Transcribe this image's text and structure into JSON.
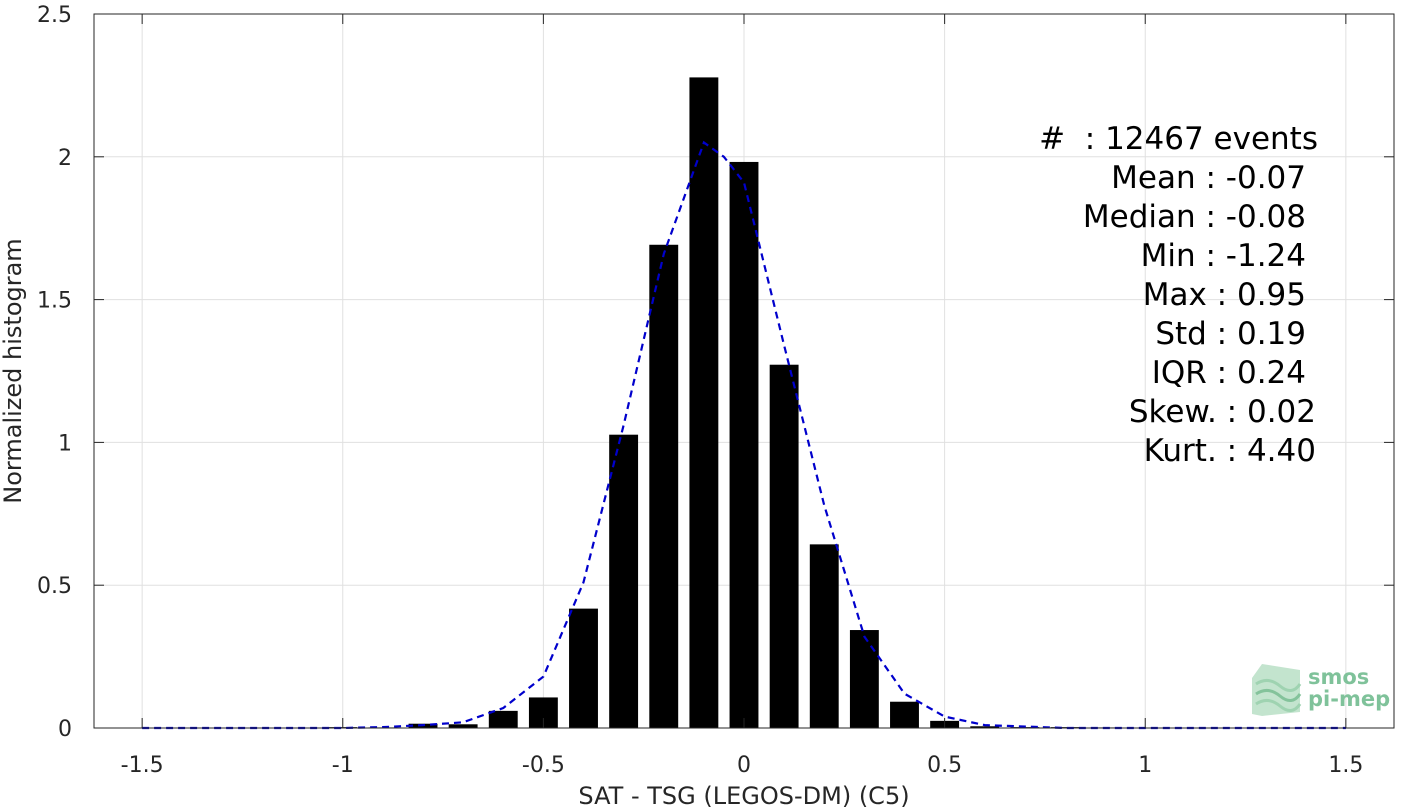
{
  "chart_data": {
    "type": "bar",
    "xlabel": "SAT - TSG (LEGOS-DM) (C5)",
    "ylabel": "Normalized histogram",
    "xlim": [
      -1.62,
      1.62
    ],
    "ylim": [
      0,
      2.5
    ],
    "xticks": [
      -1.5,
      -1,
      -0.5,
      0,
      0.5,
      1,
      1.5
    ],
    "xtick_labels": [
      "-1.5",
      "-1",
      "-0.5",
      "0",
      "0.5",
      "1",
      "1.5"
    ],
    "yticks": [
      0,
      0.5,
      1,
      1.5,
      2,
      2.5
    ],
    "ytick_labels": [
      "0",
      "0.5",
      "1",
      "1.5",
      "2",
      "2.5"
    ],
    "grid": true,
    "bar_color": "#000000",
    "bars": {
      "centers": [
        -1.0,
        -0.9,
        -0.8,
        -0.7,
        -0.6,
        -0.5,
        -0.4,
        -0.3,
        -0.2,
        -0.1,
        0.0,
        0.1,
        0.2,
        0.3,
        0.4,
        0.5,
        0.6,
        0.7,
        0.8,
        0.9
      ],
      "values": [
        0.003,
        0.002,
        0.015,
        0.013,
        0.06,
        0.107,
        0.418,
        1.027,
        1.692,
        2.278,
        1.982,
        1.272,
        0.643,
        0.343,
        0.092,
        0.025,
        0.006,
        0.003,
        0.003,
        0.002
      ]
    },
    "fit_curve": {
      "color": "#0000cc",
      "style": "dashed",
      "x": [
        -1.5,
        -1.2,
        -1.0,
        -0.9,
        -0.8,
        -0.7,
        -0.6,
        -0.5,
        -0.4,
        -0.3,
        -0.2,
        -0.1,
        -0.05,
        0.0,
        0.1,
        0.2,
        0.3,
        0.4,
        0.5,
        0.6,
        0.8,
        1.0,
        1.5
      ],
      "y": [
        0.0,
        0.0,
        0.0,
        0.003,
        0.01,
        0.02,
        0.07,
        0.18,
        0.51,
        1.06,
        1.66,
        2.05,
        2.0,
        1.91,
        1.34,
        0.78,
        0.32,
        0.12,
        0.04,
        0.01,
        0.0,
        0.0,
        0.0
      ]
    },
    "stats": {
      "count": "#  : 12467 events",
      "mean": "Mean : -0.07",
      "median": "Median : -0.08",
      "min": "Min : -1.24",
      "max": "Max : 0.95",
      "std": "Std : 0.19",
      "iqr": "IQR : 0.24",
      "skew": "Skew. : 0.02",
      "kurt": "Kurt. : 4.40"
    }
  },
  "logo": {
    "line1": "smos",
    "line2": "pi-mep"
  }
}
